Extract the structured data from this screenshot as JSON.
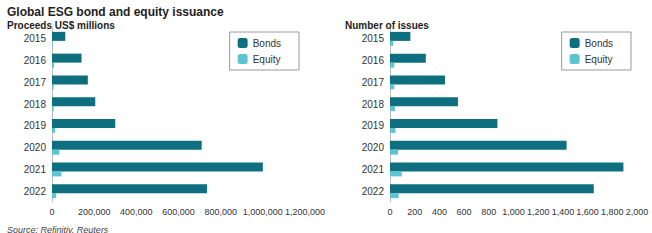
{
  "title": "Global ESG bond and equity issuance",
  "source": "Source: Refinitiv, Reuters",
  "chart_data": [
    {
      "type": "bar",
      "title": "Proceeds US$ millions",
      "orientation": "horizontal",
      "categories": [
        "2015",
        "2016",
        "2017",
        "2018",
        "2019",
        "2020",
        "2021",
        "2022"
      ],
      "series": [
        {
          "name": "Bonds",
          "color": "#0e6f80",
          "values": [
            63000,
            140000,
            170000,
            205000,
            300000,
            710000,
            1000000,
            735000
          ]
        },
        {
          "name": "Equity",
          "color": "#5ec4cf",
          "values": [
            3000,
            10000,
            8000,
            8000,
            15000,
            35000,
            45000,
            20000
          ]
        }
      ],
      "xlim": [
        0,
        1200000
      ],
      "xticks": [
        0,
        {
          "value": 200000,
          "label": "200,000"
        },
        {
          "value": 400000,
          "label": "400,000"
        },
        {
          "value": 600000,
          "label": "600,000"
        },
        {
          "value": 800000,
          "label": "800,000"
        },
        {
          "value": 1000000,
          "label": "1,000,000"
        },
        {
          "value": 1200000,
          "label": "1,200,000"
        }
      ],
      "grid": false,
      "legend": "top-right"
    },
    {
      "type": "bar",
      "title": "Number of issues",
      "orientation": "horizontal",
      "categories": [
        "2015",
        "2016",
        "2017",
        "2018",
        "2019",
        "2020",
        "2021",
        "2022"
      ],
      "series": [
        {
          "name": "Bonds",
          "color": "#0e6f80",
          "values": [
            165,
            290,
            445,
            550,
            870,
            1430,
            1890,
            1650
          ]
        },
        {
          "name": "Equity",
          "color": "#5ec4cf",
          "values": [
            25,
            35,
            35,
            40,
            45,
            65,
            95,
            70
          ]
        }
      ],
      "xlim": [
        0,
        2000
      ],
      "xticks": [
        0,
        200,
        400,
        600,
        800,
        {
          "value": 1000,
          "label": "1,000"
        },
        {
          "value": 1200,
          "label": "1,200"
        },
        {
          "value": 1400,
          "label": "1,400"
        },
        {
          "value": 1600,
          "label": "1,600"
        },
        {
          "value": 1800,
          "label": "1,800"
        },
        {
          "value": 2000,
          "label": "2,000"
        }
      ],
      "grid": false,
      "legend": "top-right"
    }
  ]
}
